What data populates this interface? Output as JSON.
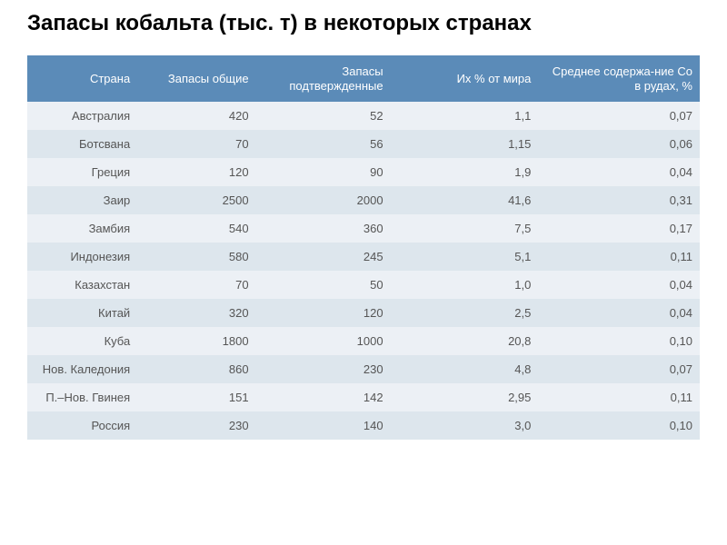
{
  "title": "Запасы кобальта (тыс. т) в некоторых странах",
  "table": {
    "type": "table",
    "header_bg": "#5b8bb8",
    "header_fg": "#ffffff",
    "row_odd_bg": "#ecf0f5",
    "row_even_bg": "#dde6ed",
    "cell_fg": "#555555",
    "font_size": 13,
    "columns": [
      {
        "label": "Страна",
        "width": "18%",
        "align": "right"
      },
      {
        "label": "Запасы общие",
        "width": "16%",
        "align": "right"
      },
      {
        "label": "Запасы подтвержденные",
        "width": "20%",
        "align": "right"
      },
      {
        "label": "Их % от мира",
        "width": "22%",
        "align": "right"
      },
      {
        "label": "Среднее содержа-ние Co в рудах, %",
        "width": "24%",
        "align": "right"
      }
    ],
    "rows": [
      {
        "country": "Австралия",
        "total": "420",
        "confirmed": "52",
        "percent": "1,1",
        "content": "0,07"
      },
      {
        "country": "Ботсвана",
        "total": "70",
        "confirmed": "56",
        "percent": "1,15",
        "content": "0,06"
      },
      {
        "country": "Греция",
        "total": "120",
        "confirmed": "90",
        "percent": "1,9",
        "content": "0,04"
      },
      {
        "country": "Заир",
        "total": "2500",
        "confirmed": "2000",
        "percent": "41,6",
        "content": "0,31"
      },
      {
        "country": "Замбия",
        "total": "540",
        "confirmed": "360",
        "percent": "7,5",
        "content": "0,17"
      },
      {
        "country": "Индонезия",
        "total": "580",
        "confirmed": "245",
        "percent": "5,1",
        "content": "0,11"
      },
      {
        "country": "Казахстан",
        "total": "70",
        "confirmed": "50",
        "percent": "1,0",
        "content": "0,04"
      },
      {
        "country": "Китай",
        "total": "320",
        "confirmed": "120",
        "percent": "2,5",
        "content": "0,04"
      },
      {
        "country": "Куба",
        "total": "1800",
        "confirmed": "1000",
        "percent": "20,8",
        "content": "0,10"
      },
      {
        "country": "Нов. Каледония",
        "total": "860",
        "confirmed": "230",
        "percent": "4,8",
        "content": "0,07"
      },
      {
        "country": "П.–Нов. Гвинея",
        "total": "151",
        "confirmed": "142",
        "percent": "2,95",
        "content": "0,11"
      },
      {
        "country": "Россия",
        "total": "230",
        "confirmed": "140",
        "percent": "3,0",
        "content": "0,10"
      }
    ]
  }
}
